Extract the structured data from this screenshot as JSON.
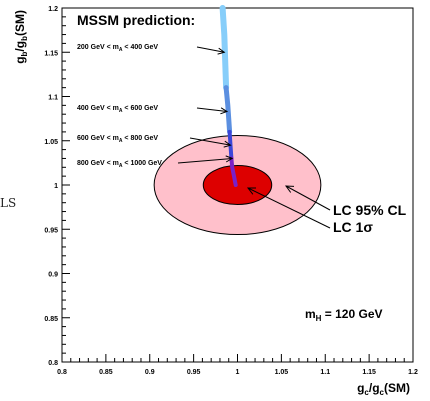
{
  "side_note": "LS",
  "chart_data": {
    "type": "scatter",
    "xlabel_main": "g",
    "xlabel_sub": "c",
    "xlabel_den": "/g",
    "xlabel_den_sub": "c",
    "xlabel_suffix": "(SM)",
    "ylabel_main": "g",
    "ylabel_sub": "b",
    "ylabel_den": "/g",
    "ylabel_den_sub": "b",
    "ylabel_suffix": "(SM)",
    "xlim": [
      0.8,
      1.2
    ],
    "ylim": [
      0.8,
      1.2
    ],
    "x_ticks": [
      "0.8",
      "0.85",
      "0.9",
      "0.95",
      "1",
      "1.05",
      "1.1",
      "1.15",
      "1.2"
    ],
    "y_ticks": [
      "0.8",
      "0.85",
      "0.9",
      "0.95",
      "1",
      "1.05",
      "1.1",
      "1.15",
      "1.2"
    ],
    "grid": false,
    "title": "MSSM prediction:",
    "annotations": [
      {
        "label": "200 GeV < m",
        "sub": "A",
        "rest": " < 400 GeV",
        "arrow_to": [
          0.985,
          1.15
        ]
      },
      {
        "label": "400 GeV < m",
        "sub": "A",
        "rest": " < 600 GeV",
        "arrow_to": [
          0.988,
          1.083
        ]
      },
      {
        "label": "600 GeV < m",
        "sub": "A",
        "rest": " < 800 GeV",
        "arrow_to": [
          0.992,
          1.045
        ]
      },
      {
        "label": "800 GeV < m",
        "sub": "A",
        "rest": " < 1000 GeV",
        "arrow_to": [
          0.994,
          1.03
        ]
      }
    ],
    "mass_label": "m",
    "mass_sub": "H",
    "mass_rest": " = 120 GeV",
    "ellipses": [
      {
        "name": "LC 95% CL",
        "center": [
          1.0,
          1.0
        ],
        "rx": 0.095,
        "ry": 0.056,
        "fill": "#ffc0cb"
      },
      {
        "name": "LC 1σ",
        "center": [
          1.0,
          1.0
        ],
        "rx": 0.039,
        "ry": 0.022,
        "fill": "#dd0000"
      }
    ],
    "series": [
      {
        "color": "#87cefa",
        "x": [
          0.983,
          0.985,
          0.986,
          0.987
        ],
        "y": [
          1.2,
          1.17,
          1.14,
          1.11
        ]
      },
      {
        "color": "#5b8fe0",
        "x": [
          0.987,
          0.989,
          0.99,
          0.991
        ],
        "y": [
          1.11,
          1.09,
          1.075,
          1.06
        ]
      },
      {
        "color": "#3c46d8",
        "x": [
          0.991,
          0.992,
          0.993
        ],
        "y": [
          1.06,
          1.045,
          1.03
        ]
      },
      {
        "color": "#7a20c8",
        "x": [
          0.993,
          0.994,
          0.996,
          0.998
        ],
        "y": [
          1.03,
          1.02,
          1.01,
          1.0
        ]
      }
    ],
    "colors": {
      "outer_fill": "#ffc0cb",
      "inner_fill": "#dd0000",
      "frame": "#000000"
    }
  }
}
